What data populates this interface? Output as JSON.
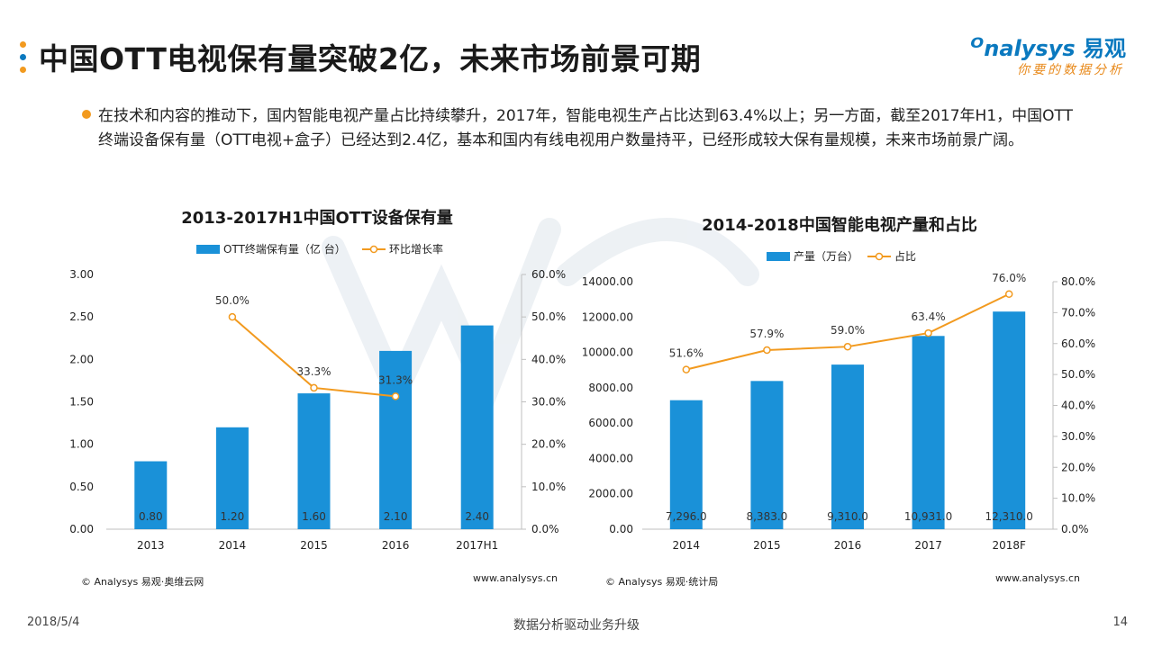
{
  "header": {
    "title": "中国OTT电视保有量突破2亿，未来市场前景可期",
    "dot_colors": [
      "#f29a1f",
      "#0a79bf",
      "#f29a1f"
    ]
  },
  "logo": {
    "brand": "nalysys",
    "brand_cn": "易观",
    "slogan": "你要的数据分析"
  },
  "bullet": {
    "text": "在技术和内容的推动下，国内智能电视产量占比持续攀升，2017年，智能电视生产占比达到63.4%以上；另一方面，截至2017年H1，中国OTT终端设备保有量（OTT电视+盒子）已经达到2.4亿，基本和国内有线电视用户数量持平，已经形成较大保有量规模，未来市场前景广阔。"
  },
  "colors": {
    "bar": "#1a91d8",
    "line": "#f29a1f",
    "accent_orange": "#f29a1f",
    "accent_blue": "#0a79bf"
  },
  "chart_data": [
    {
      "type": "bar",
      "title": "2013-2017H1中国OTT设备保有量",
      "categories": [
        "2013",
        "2014",
        "2015",
        "2016",
        "2017H1"
      ],
      "series": [
        {
          "name": "OTT终端保有量（亿 台）",
          "kind": "bar",
          "axis": "left",
          "values": [
            0.8,
            1.2,
            1.6,
            2.1,
            2.4
          ],
          "labels": [
            "0.80",
            "1.20",
            "1.60",
            "2.10",
            "2.40"
          ]
        },
        {
          "name": "环比增长率",
          "kind": "line",
          "axis": "right",
          "values": [
            null,
            50.0,
            33.3,
            31.3,
            null
          ],
          "labels": [
            "",
            "50.0%",
            "33.3%",
            "31.3%",
            ""
          ]
        }
      ],
      "y_left": {
        "min": 0,
        "max": 3.0,
        "ticks": [
          "0.00",
          "0.50",
          "1.00",
          "1.50",
          "2.00",
          "2.50",
          "3.00"
        ]
      },
      "y_right": {
        "min": 0,
        "max": 60,
        "ticks": [
          "0.0%",
          "10.0%",
          "20.0%",
          "30.0%",
          "40.0%",
          "50.0%",
          "60.0%"
        ]
      },
      "legend": "top",
      "grid": false,
      "source": "© Analysys 易观·奥维云网",
      "url": "www.analysys.cn"
    },
    {
      "type": "bar",
      "title": "2014-2018中国智能电视产量和占比",
      "categories": [
        "2014",
        "2015",
        "2016",
        "2017",
        "2018F"
      ],
      "series": [
        {
          "name": "产量（万台）",
          "kind": "bar",
          "axis": "left",
          "values": [
            7296.0,
            8383.0,
            9310.0,
            10931.0,
            12310.0
          ],
          "labels": [
            "7,296.0",
            "8,383.0",
            "9,310.0",
            "10,931.0",
            "12,310.0"
          ]
        },
        {
          "name": "占比",
          "kind": "line",
          "axis": "right",
          "values": [
            51.6,
            57.9,
            59.0,
            63.4,
            76.0
          ],
          "labels": [
            "51.6%",
            "57.9%",
            "59.0%",
            "63.4%",
            "76.0%"
          ]
        }
      ],
      "y_left": {
        "min": 0,
        "max": 14000,
        "ticks": [
          "0.00",
          "2000.00",
          "4000.00",
          "6000.00",
          "8000.00",
          "10000.00",
          "12000.00",
          "14000.00"
        ]
      },
      "y_right": {
        "min": 0,
        "max": 80,
        "ticks": [
          "0.0%",
          "10.0%",
          "20.0%",
          "30.0%",
          "40.0%",
          "50.0%",
          "60.0%",
          "70.0%",
          "80.0%"
        ]
      },
      "legend": "top",
      "grid": false,
      "source": "© Analysys 易观·统计局",
      "url": "www.analysys.cn"
    }
  ],
  "footer": {
    "date": "2018/5/4",
    "center": "数据分析驱动业务升级",
    "page": "14"
  }
}
